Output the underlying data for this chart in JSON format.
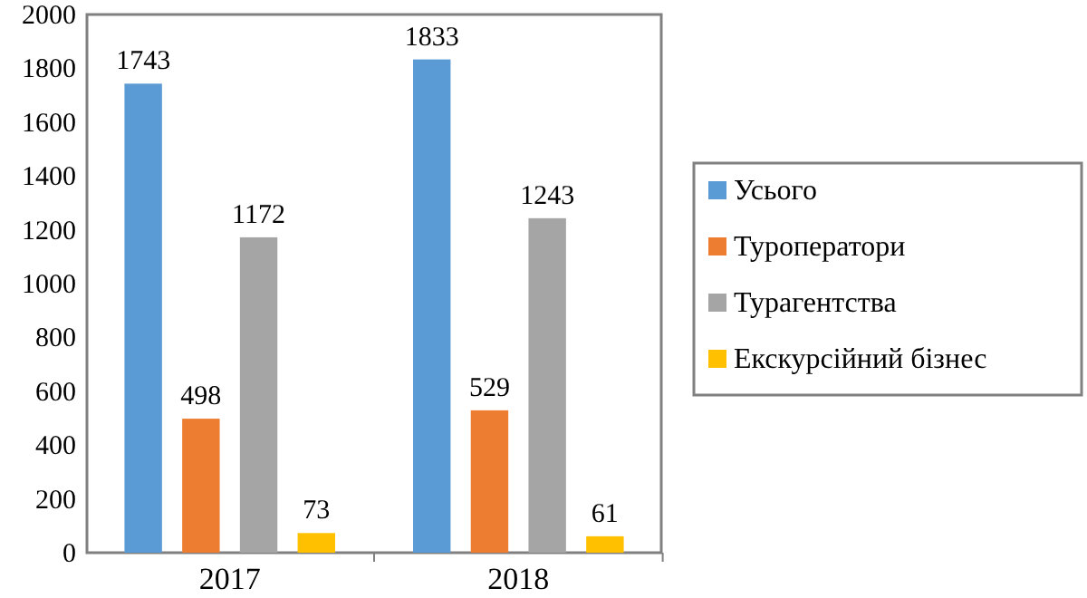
{
  "chart_data": {
    "type": "bar",
    "categories": [
      "2017",
      "2018"
    ],
    "series": [
      {
        "name": "Усього",
        "color": "#5b9bd5",
        "values": [
          1743,
          1833
        ]
      },
      {
        "name": "Туроператори",
        "color": "#ed7d31",
        "values": [
          498,
          529
        ]
      },
      {
        "name": "Турагентства",
        "color": "#a5a5a5",
        "values": [
          1172,
          1243
        ]
      },
      {
        "name": "Екскурсійний бізнес",
        "color": "#ffc000",
        "values": [
          73,
          61
        ]
      }
    ],
    "ylim": [
      0,
      2000
    ],
    "yticks": [
      0,
      200,
      400,
      600,
      800,
      1000,
      1200,
      1400,
      1600,
      1800,
      2000
    ],
    "data_labels": true,
    "legend": "right",
    "grid": false
  }
}
